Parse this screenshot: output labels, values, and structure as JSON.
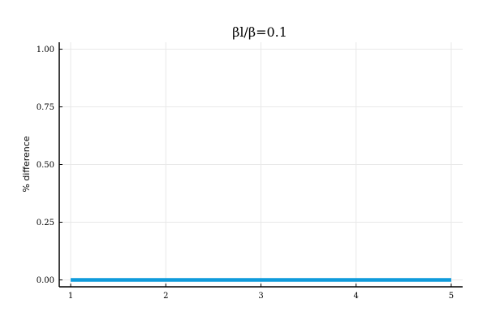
{
  "chart_data": {
    "type": "line",
    "title": "βl/β=0.1",
    "xlabel": "",
    "ylabel": "% difference",
    "x": [
      1,
      2,
      3,
      4,
      5
    ],
    "x_ticks": [
      1,
      2,
      3,
      4,
      5
    ],
    "x_tick_labels": [
      "1",
      "2",
      "3",
      "4",
      "5"
    ],
    "y_ticks": [
      0.0,
      0.25,
      0.5,
      0.75,
      1.0
    ],
    "y_tick_labels": [
      "0.00",
      "0.25",
      "0.50",
      "0.75",
      "1.00"
    ],
    "xlim": [
      0.88,
      5.12
    ],
    "ylim": [
      -0.03,
      1.03
    ],
    "grid": true,
    "legend": "none",
    "series": [
      {
        "x": [
          1,
          2,
          3,
          4,
          5
        ],
        "values": [
          0,
          0,
          0,
          0,
          0
        ],
        "color": "#0f9bdb"
      }
    ]
  }
}
